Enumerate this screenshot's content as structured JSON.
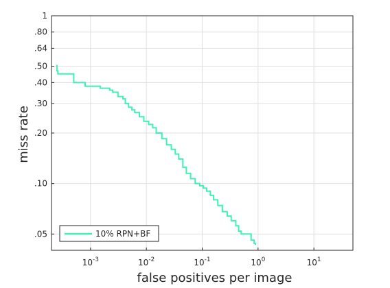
{
  "chart_data": {
    "type": "line",
    "title": "",
    "xlabel": "false positives per image",
    "ylabel": "miss rate",
    "x_scale": "log",
    "y_scale": "log",
    "xlim": [
      0.0002,
      50
    ],
    "ylim": [
      0.04,
      1
    ],
    "x_ticks": [
      {
        "value": 0.001,
        "base": "10",
        "exp": "-3"
      },
      {
        "value": 0.01,
        "base": "10",
        "exp": "-2"
      },
      {
        "value": 0.1,
        "base": "10",
        "exp": "-1"
      },
      {
        "value": 1,
        "base": "10",
        "exp": "0"
      },
      {
        "value": 10,
        "base": "10",
        "exp": "1"
      }
    ],
    "y_ticks": [
      {
        "value": 0.05,
        "label": ".05"
      },
      {
        "value": 0.1,
        "label": ".10"
      },
      {
        "value": 0.2,
        "label": ".20"
      },
      {
        "value": 0.3,
        "label": ".30"
      },
      {
        "value": 0.4,
        "label": ".40"
      },
      {
        "value": 0.5,
        "label": ".50"
      },
      {
        "value": 0.64,
        "label": ".64"
      },
      {
        "value": 0.8,
        "label": ".80"
      },
      {
        "value": 1,
        "label": "1"
      }
    ],
    "grid": true,
    "legend_position": "bottom-left",
    "series": [
      {
        "name": "10% RPN+BF",
        "color": "#40f0b8",
        "x": [
          0.00025,
          0.00025,
          0.00026,
          0.0005,
          0.0005,
          0.0007,
          0.0008,
          0.0015,
          0.0022,
          0.0025,
          0.0031,
          0.0038,
          0.0042,
          0.0048,
          0.0055,
          0.0062,
          0.0075,
          0.009,
          0.011,
          0.013,
          0.015,
          0.019,
          0.023,
          0.028,
          0.033,
          0.038,
          0.045,
          0.052,
          0.062,
          0.075,
          0.09,
          0.105,
          0.12,
          0.14,
          0.16,
          0.19,
          0.23,
          0.28,
          0.33,
          0.4,
          0.45,
          0.5,
          0.55,
          0.65,
          0.75,
          0.85,
          0.9
        ],
        "y": [
          0.51,
          0.47,
          0.45,
          0.45,
          0.4,
          0.4,
          0.38,
          0.37,
          0.36,
          0.35,
          0.33,
          0.32,
          0.3,
          0.285,
          0.275,
          0.265,
          0.25,
          0.235,
          0.225,
          0.215,
          0.2,
          0.185,
          0.17,
          0.16,
          0.15,
          0.14,
          0.125,
          0.115,
          0.107,
          0.1,
          0.097,
          0.094,
          0.09,
          0.085,
          0.08,
          0.074,
          0.068,
          0.064,
          0.06,
          0.056,
          0.052,
          0.05,
          0.05,
          0.05,
          0.046,
          0.044,
          0.043
        ]
      }
    ]
  }
}
